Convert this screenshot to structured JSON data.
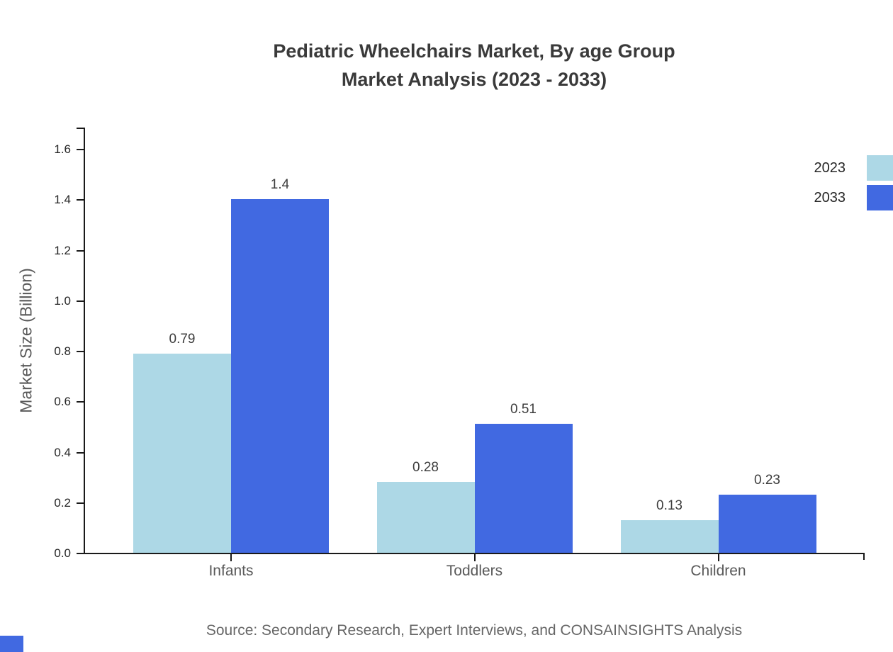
{
  "title": {
    "line1": "Pediatric Wheelchairs Market, By age Group",
    "line2": "Market Analysis (2023 - 2033)"
  },
  "chart_data": {
    "type": "bar",
    "categories": [
      "Infants",
      "Toddlers",
      "Children"
    ],
    "series": [
      {
        "name": "2023",
        "color": "#add8e6",
        "values": [
          0.79,
          0.28,
          0.13
        ],
        "labels": [
          "0.79",
          "0.28",
          "0.13"
        ]
      },
      {
        "name": "2033",
        "color": "#4169e1",
        "values": [
          1.4,
          0.51,
          0.23
        ],
        "labels": [
          "1.4",
          "0.51",
          "0.23"
        ]
      }
    ],
    "title": "Pediatric Wheelchairs Market, By age Group Market Analysis (2023 - 2033)",
    "xlabel": "",
    "ylabel": "Market Size (Billion)",
    "ylim": [
      0,
      1.684
    ],
    "yticks": [
      "0.0",
      "0.2",
      "0.4",
      "0.6",
      "0.8",
      "1.0",
      "1.2",
      "1.4",
      "1.6"
    ],
    "grid": false,
    "legend_position": "upper right outside edge"
  },
  "legend": {
    "items": [
      {
        "label": "2023",
        "color": "#add8e6"
      },
      {
        "label": "2033",
        "color": "#4169e1"
      }
    ]
  },
  "source_note": "Source: Secondary Research, Expert Interviews, and CONSAINSIGHTS Analysis",
  "colors": {
    "series_2023": "#add8e6",
    "series_2033": "#4169e1",
    "title_text": "#3a3a3a",
    "tick_text": "#262626",
    "category_text": "#595959",
    "axis_line": "#1a1a1a",
    "source_text": "#666666",
    "background": "#ffffff"
  }
}
